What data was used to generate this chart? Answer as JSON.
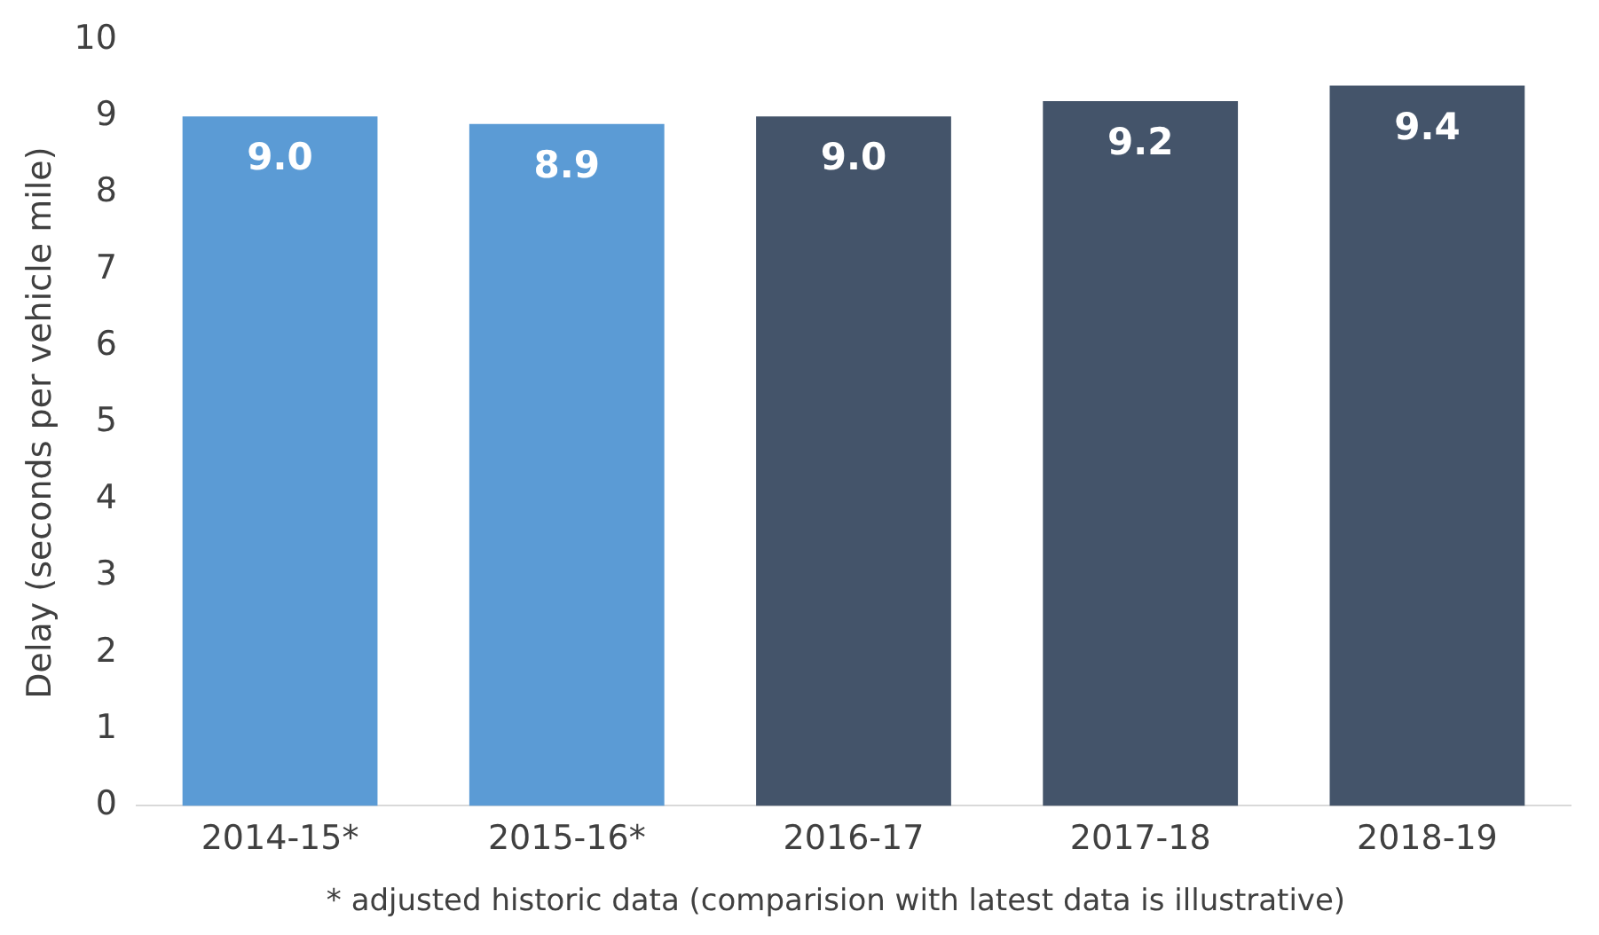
{
  "chart_data": {
    "type": "bar",
    "ylabel": "Delay (seconds per vehicle mile)",
    "categories": [
      "2014-15*",
      "2015-16*",
      "2016-17",
      "2017-18",
      "2018-19"
    ],
    "values": [
      9.0,
      8.9,
      9.0,
      9.2,
      9.4
    ],
    "colors": [
      "#5b9bd5",
      "#5b9bd5",
      "#44546a",
      "#44546a",
      "#44546a"
    ],
    "value_labels": [
      "9.0",
      "8.9",
      "9.0",
      "9.2",
      "9.4"
    ],
    "ylim": [
      0,
      10
    ],
    "yticks": [
      0,
      1,
      2,
      3,
      4,
      5,
      6,
      7,
      8,
      9,
      10
    ],
    "annotations": [
      "* adjusted historic data (comparision with latest data is illustrative)"
    ]
  }
}
